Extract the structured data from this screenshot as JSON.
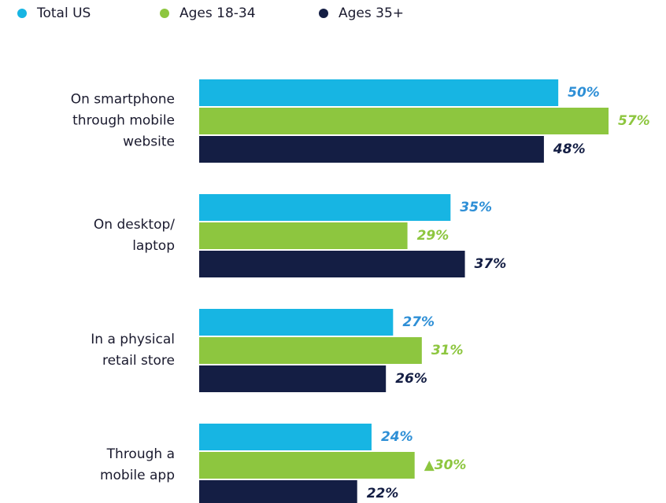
{
  "chart_data": {
    "type": "bar",
    "orientation": "horizontal",
    "categories": [
      "On smartphone\nthrough mobile\nwebsite",
      "On desktop/\nlaptop",
      "In a physical\nretail store",
      "Through a\nmobile app"
    ],
    "series": [
      {
        "name": "Total US",
        "color": "#17b5e3",
        "label_color": "#2e8fd6",
        "values": [
          50,
          35,
          27,
          24
        ],
        "value_labels": [
          "50%",
          "35%",
          "27%",
          "24%"
        ]
      },
      {
        "name": "Ages 18-34",
        "color": "#8dc63f",
        "label_color": "#8dc63f",
        "values": [
          57,
          29,
          31,
          30
        ],
        "value_labels": [
          "57%",
          "29%",
          "31%",
          "▲30%"
        ]
      },
      {
        "name": "Ages 35+",
        "color": "#141e44",
        "label_color": "#141e44",
        "values": [
          48,
          37,
          26,
          22
        ],
        "value_labels": [
          "48%",
          "37%",
          "26%",
          "22%"
        ]
      }
    ],
    "xlim": [
      0,
      65
    ],
    "legend": "top-left"
  }
}
